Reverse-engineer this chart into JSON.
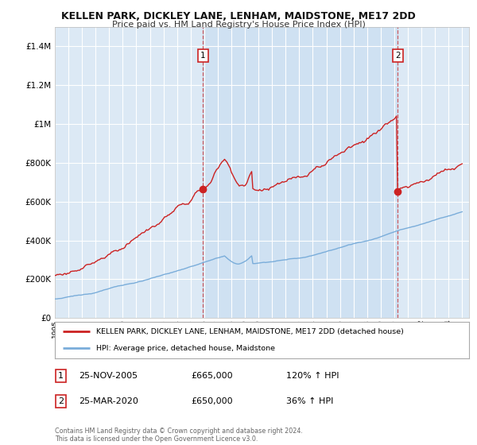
{
  "title": "KELLEN PARK, DICKLEY LANE, LENHAM, MAIDSTONE, ME17 2DD",
  "subtitle": "Price paid vs. HM Land Registry's House Price Index (HPI)",
  "background_color": "#ffffff",
  "plot_bg_color": "#dce9f5",
  "grid_color": "#ffffff",
  "red_line_color": "#cc2222",
  "blue_line_color": "#7aadda",
  "ylim": [
    0,
    1500000
  ],
  "yticks": [
    0,
    200000,
    400000,
    600000,
    800000,
    1000000,
    1200000,
    1400000
  ],
  "xlim_start": 1995,
  "xlim_end": 2025.5,
  "marker1_year": 2005.9,
  "marker1_price": 665000,
  "marker2_year": 2020.25,
  "marker2_price": 650000,
  "legend_red": "KELLEN PARK, DICKLEY LANE, LENHAM, MAIDSTONE, ME17 2DD (detached house)",
  "legend_blue": "HPI: Average price, detached house, Maidstone",
  "table_row1": [
    "1",
    "25-NOV-2005",
    "£665,000",
    "120% ↑ HPI"
  ],
  "table_row2": [
    "2",
    "25-MAR-2020",
    "£650,000",
    "36% ↑ HPI"
  ],
  "footer": "Contains HM Land Registry data © Crown copyright and database right 2024.\nThis data is licensed under the Open Government Licence v3.0."
}
